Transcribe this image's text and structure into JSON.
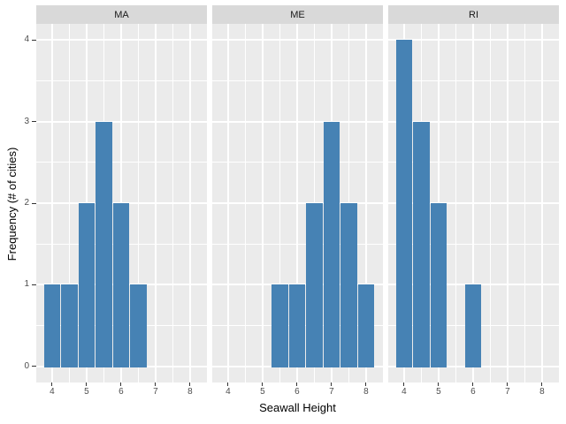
{
  "axes": {
    "x_title": "Seawall Height",
    "y_title": "Frequency (# of cities)",
    "x_ticks": [
      4,
      5,
      6,
      7,
      8
    ],
    "y_ticks": [
      0,
      1,
      2,
      3,
      4
    ],
    "x_minor": [
      4.5,
      5.5,
      6.5,
      7.5
    ],
    "y_minor": [
      0.5,
      1.5,
      2.5,
      3.5
    ]
  },
  "chart_data": {
    "type": "bar",
    "subtype": "faceted-histogram",
    "title": "",
    "xlabel": "Seawall Height",
    "ylabel": "Frequency (# of cities)",
    "bin_width": 0.5,
    "xlim": [
      3.54,
      8.49
    ],
    "ylim": [
      -0.195,
      4.195
    ],
    "grid": "on",
    "legend_position": "none",
    "facets": [
      {
        "label": "MA",
        "bin_centers": [
          4,
          4.5,
          5,
          5.5,
          6,
          6.5
        ],
        "counts": [
          1,
          1,
          2,
          3,
          2,
          1
        ]
      },
      {
        "label": "ME",
        "bin_centers": [
          5.5,
          6,
          6.5,
          7,
          7.5,
          8
        ],
        "counts": [
          1,
          1,
          2,
          3,
          2,
          1
        ]
      },
      {
        "label": "RI",
        "bin_centers": [
          4,
          4.5,
          5,
          6
        ],
        "counts": [
          4,
          3,
          2,
          1
        ]
      }
    ]
  },
  "style": {
    "bar_color": "#4682B4",
    "panel_bg": "#EBEBEB",
    "strip_bg": "#D9D9D9",
    "grid_color": "#FFFFFF",
    "tick_color": "#333333",
    "tick_label_color": "#4D4D4D",
    "strip_label_color": "#1A1A1A",
    "axis_title_color": "#000000",
    "background": "#FFFFFF"
  }
}
